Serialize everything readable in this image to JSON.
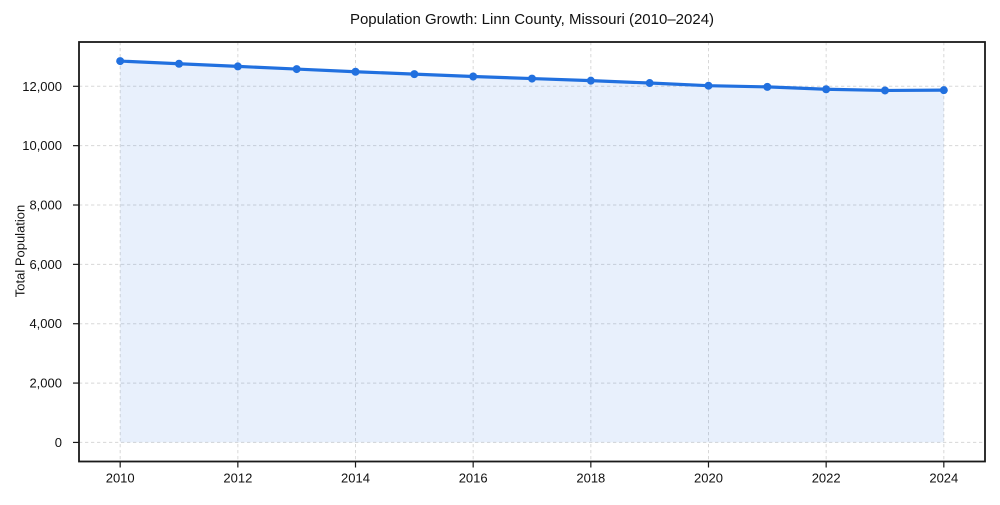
{
  "figure": {
    "title": "Population Growth: Linn County, Missouri (2010–2024)",
    "ylabel": "Total Population"
  },
  "chart_data": {
    "type": "line",
    "title": "Population Growth: Linn County, Missouri (2010–2024)",
    "xlabel": "",
    "ylabel": "Total Population",
    "series": [
      {
        "name": "Total Population",
        "x": [
          2010,
          2011,
          2012,
          2013,
          2014,
          2015,
          2016,
          2017,
          2018,
          2019,
          2020,
          2021,
          2022,
          2023,
          2024
        ],
        "values": [
          12850,
          12760,
          12670,
          12580,
          12490,
          12410,
          12330,
          12260,
          12190,
          12110,
          12020,
          11980,
          11900,
          11860,
          11870
        ]
      }
    ],
    "marker": "circle",
    "area_fill": true,
    "grid": true,
    "grid_style": "dashed",
    "legend_position": "none",
    "xlim": [
      2009.3,
      2024.7
    ],
    "ylim": [
      -642.5,
      13492.5
    ],
    "xticks": [
      2010,
      2012,
      2014,
      2016,
      2018,
      2020,
      2022,
      2024
    ],
    "xtick_labels": [
      "2010",
      "2012",
      "2014",
      "2016",
      "2018",
      "2020",
      "2022",
      "2024"
    ],
    "yticks": [
      0,
      2000,
      4000,
      6000,
      8000,
      10000,
      12000
    ],
    "ytick_labels": [
      "0",
      "2,000",
      "4,000",
      "6,000",
      "8,000",
      "10,000",
      "12,000"
    ],
    "colors": {
      "line": "#2170df",
      "fill": "#2170df",
      "fill_opacity": 0.1,
      "grid": "#d8d8d8",
      "spine": "#1a1a1a",
      "text": "#111111"
    }
  }
}
